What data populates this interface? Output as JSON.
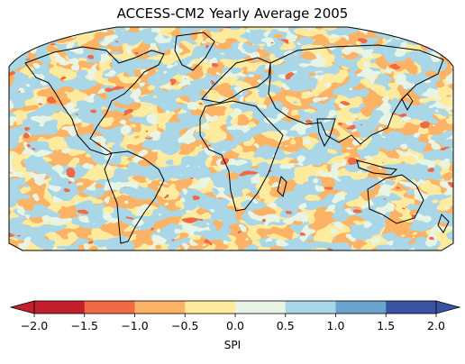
{
  "title": "ACCESS-CM2 Yearly Average 2005",
  "colorbar": {
    "label": "SPI",
    "ticks": [
      "−2.0",
      "−1.5",
      "−1.0",
      "−0.5",
      "0.0",
      "0.5",
      "1.0",
      "1.5",
      "2.0"
    ],
    "bins": [
      {
        "from": -2.0,
        "to": -1.5,
        "color": "#c41f2d"
      },
      {
        "from": -1.5,
        "to": -1.0,
        "color": "#f16a44"
      },
      {
        "from": -1.0,
        "to": -0.5,
        "color": "#fdb365"
      },
      {
        "from": -0.5,
        "to": 0.0,
        "color": "#feeb9e"
      },
      {
        "from": 0.0,
        "to": 0.5,
        "color": "#e9f5e4"
      },
      {
        "from": 0.5,
        "to": 1.0,
        "color": "#a9d7e7"
      },
      {
        "from": 1.0,
        "to": 1.5,
        "color": "#6aa3cd"
      },
      {
        "from": 1.5,
        "to": 2.0,
        "color": "#3a52a3"
      }
    ],
    "extend": "both"
  },
  "map": {
    "projection": "Robinson",
    "variable": "SPI",
    "year": "2005",
    "coastlines": true
  },
  "colors": {
    "land_outline": "#000000",
    "frame": "#000000"
  }
}
